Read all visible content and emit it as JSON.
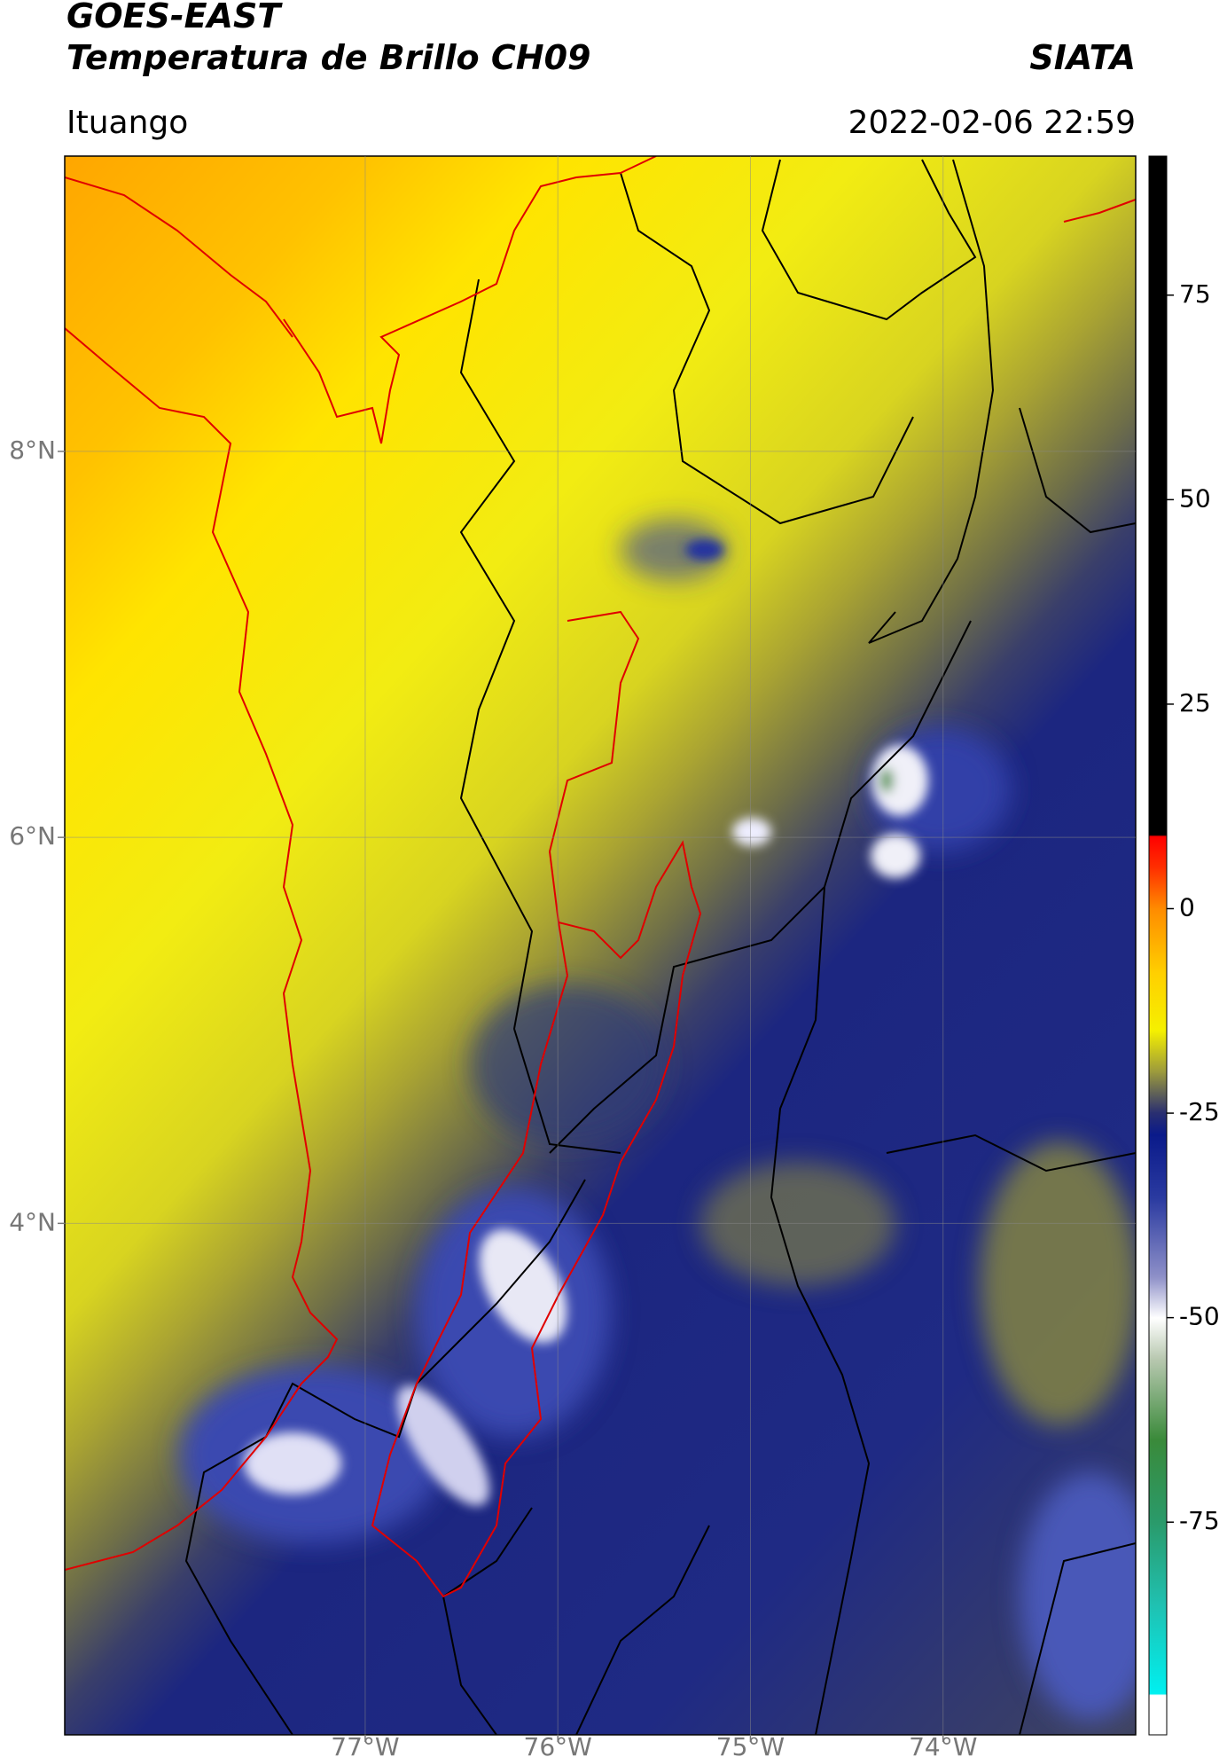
{
  "header": {
    "title": "GOES-EAST",
    "subtitle": "Temperatura de Brillo CH09",
    "brand": "SIATA",
    "location": "Ituango",
    "datetime": "2022-02-06 22:59"
  },
  "map": {
    "lat_lim": [
      1.35,
      9.53
    ],
    "lon_lim": [
      -78.56,
      -73.0
    ],
    "lat_ticks": [
      {
        "value": 8,
        "label": "8°N"
      },
      {
        "value": 6,
        "label": "6°N"
      },
      {
        "value": 4,
        "label": "4°N"
      }
    ],
    "lon_ticks": [
      {
        "value": -77,
        "label": "77°W"
      },
      {
        "value": -76,
        "label": "76°W"
      },
      {
        "value": -75,
        "label": "75°W"
      },
      {
        "value": -74,
        "label": "74°W"
      }
    ]
  },
  "colorbar": {
    "lim": [
      -101,
      92
    ],
    "ticks": [
      75,
      50,
      25,
      0,
      -25,
      -50,
      -75
    ]
  }
}
